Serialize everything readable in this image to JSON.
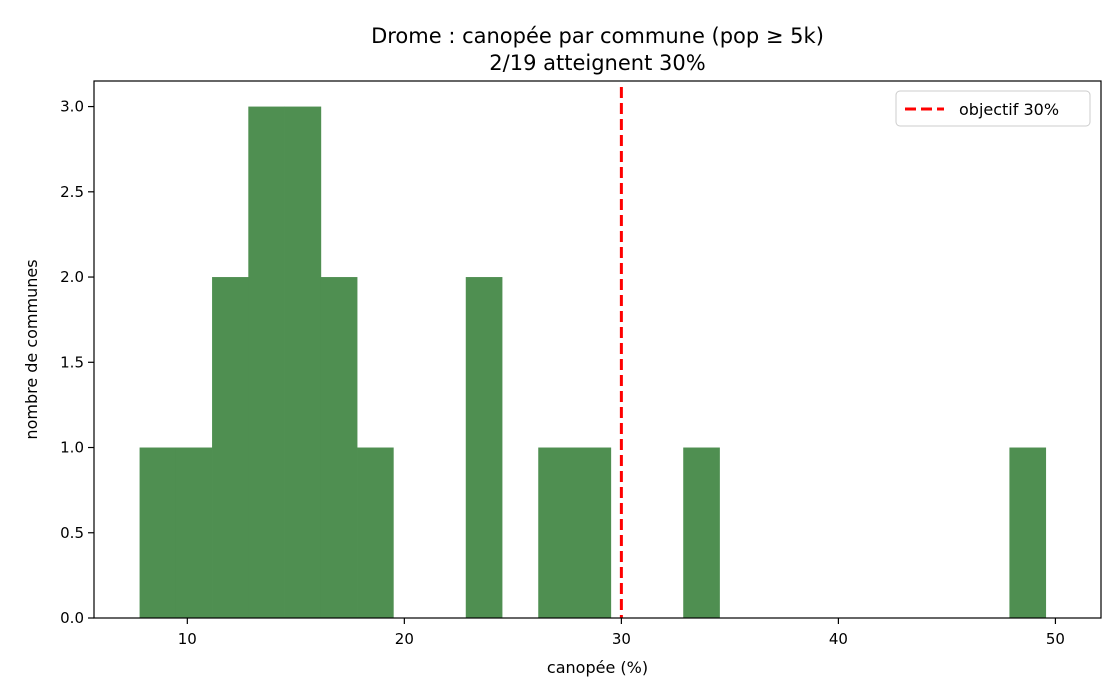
{
  "chart_data": {
    "type": "bar",
    "title": "Drome : canopée par commune (pop ≥ 5k)",
    "subtitle": "2/19 atteignent 30%",
    "xlabel": "canopée (%)",
    "ylabel": "nombre de communes",
    "xlim": [
      5.7,
      52.1
    ],
    "ylim": [
      0,
      3.15
    ],
    "xticks": [
      10,
      20,
      30,
      40,
      50
    ],
    "yticks": [
      0.0,
      0.5,
      1.0,
      1.5,
      2.0,
      2.5,
      3.0
    ],
    "bin_edges": [
      7.8,
      9.47,
      11.14,
      12.81,
      14.48,
      16.15,
      17.82,
      19.49,
      21.16,
      22.83,
      24.5,
      26.17,
      27.84,
      29.51,
      31.18,
      32.85,
      34.52,
      36.19,
      37.86,
      39.53,
      41.2,
      42.87,
      44.54,
      46.21,
      47.88,
      49.55
    ],
    "counts": [
      1,
      1,
      2,
      3,
      3,
      2,
      1,
      0,
      0,
      2,
      0,
      1,
      1,
      0,
      0,
      1,
      0,
      0,
      0,
      0,
      0,
      0,
      0,
      0,
      1
    ],
    "bar_color": "#4f8f51",
    "reference_line": {
      "x": 30,
      "label": "objectif 30%",
      "color": "#ff0000",
      "style": "dashed"
    },
    "legend": {
      "position": "top-right",
      "entries": [
        "objectif 30%"
      ]
    },
    "grid": false
  }
}
